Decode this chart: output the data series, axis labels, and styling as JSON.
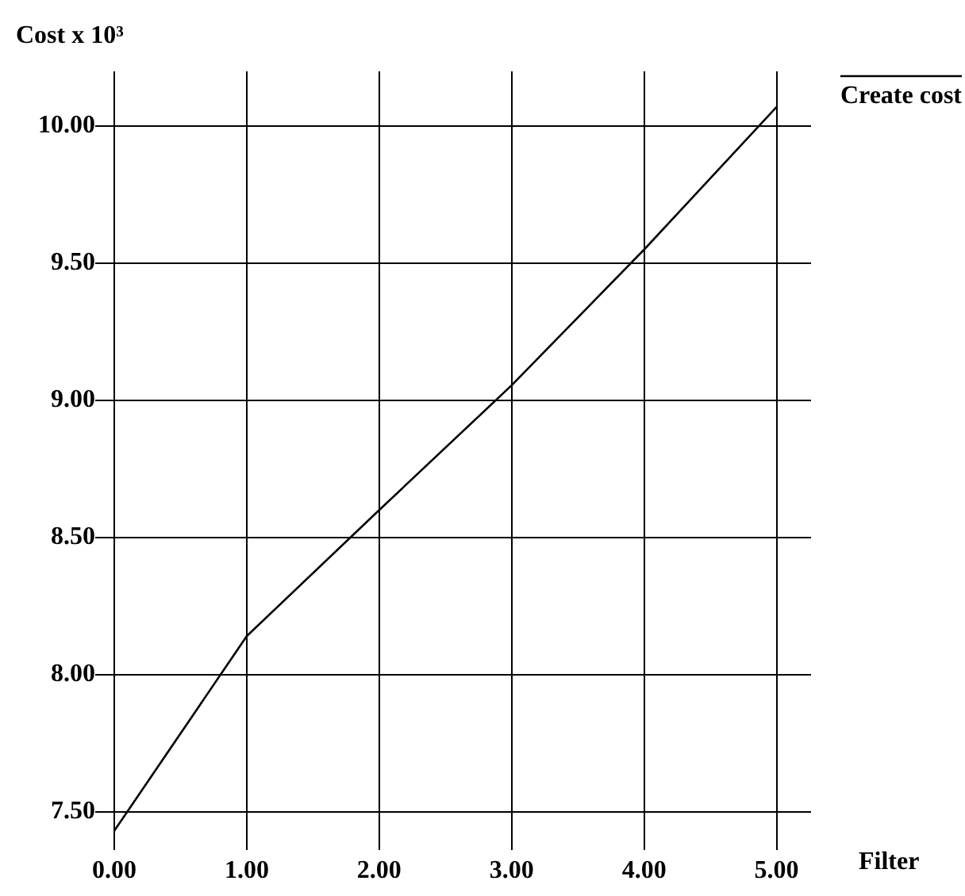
{
  "chart_data": {
    "type": "line",
    "ylabel": "Cost x 10³",
    "xlabel": "Filter",
    "x": [
      0,
      1,
      2,
      3,
      4,
      5
    ],
    "series": [
      {
        "name": "Create cost",
        "color": "#000000",
        "values": [
          7.43,
          8.14,
          8.6,
          9.055,
          9.55,
          10.07
        ]
      }
    ],
    "xlim": [
      0,
      5.26
    ],
    "xticks": [
      {
        "value": 0,
        "label": "0.00"
      },
      {
        "value": 1,
        "label": "1.00"
      },
      {
        "value": 2,
        "label": "2.00"
      },
      {
        "value": 3,
        "label": "3.00"
      },
      {
        "value": 4,
        "label": "4.00"
      },
      {
        "value": 5,
        "label": "5.00"
      }
    ],
    "ylim": [
      7.36,
      10.2
    ],
    "yticks": [
      {
        "value": 7.5,
        "label": "7.50"
      },
      {
        "value": 8,
        "label": "8.00"
      },
      {
        "value": 8.5,
        "label": "8.50"
      },
      {
        "value": 9,
        "label": "9.00"
      },
      {
        "value": 9.5,
        "label": "9.50"
      },
      {
        "value": 10,
        "label": "10.00"
      }
    ],
    "grid": true,
    "legend": "top right",
    "marker": "none",
    "line_style": "solid"
  }
}
